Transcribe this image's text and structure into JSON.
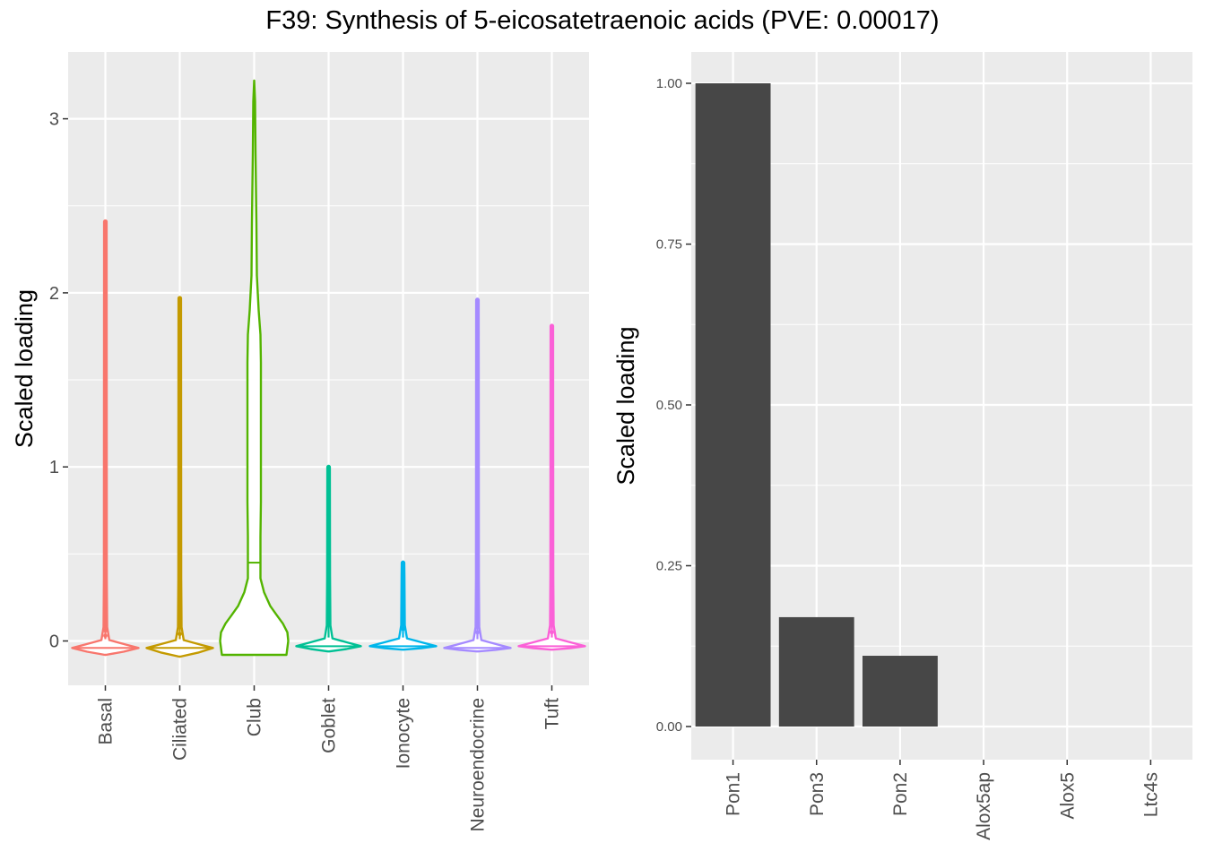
{
  "title": "F39: Synthesis of 5-eicosatetraenoic acids (PVE: 0.00017)",
  "chart_data": [
    {
      "type": "violin",
      "ylabel": "Scaled loading",
      "ylim": [
        -0.25,
        3.3
      ],
      "yticks": [
        0,
        1,
        2,
        3
      ],
      "grid": true,
      "categories": [
        "Basal",
        "Ciliated",
        "Club",
        "Goblet",
        "Ionocyte",
        "Neuroendocrine",
        "Tuft"
      ],
      "series": [
        {
          "category": "Basal",
          "color": "#F8766D",
          "min": -0.08,
          "max": 2.41,
          "median": -0.04,
          "outliers": [
            0.03,
            0.06,
            0.15,
            0.18,
            0.4,
            1.0,
            1.1
          ]
        },
        {
          "category": "Ciliated",
          "color": "#C49A00",
          "min": -0.09,
          "max": 1.97,
          "median": -0.04,
          "outliers": [
            0.04,
            0.08,
            0.22,
            0.26,
            0.8,
            0.88,
            0.92,
            1.36,
            1.58,
            1.7
          ]
        },
        {
          "category": "Club",
          "color": "#53B400",
          "min": -0.08,
          "max": 3.22,
          "median": 0.45
        },
        {
          "category": "Goblet",
          "color": "#00C094",
          "min": -0.06,
          "max": 1.0,
          "median": -0.03,
          "outliers": [
            0.1,
            0.17,
            0.43,
            0.45,
            0.55,
            0.62,
            0.64
          ]
        },
        {
          "category": "Ionocyte",
          "color": "#00B6EB",
          "min": -0.05,
          "max": 0.45,
          "median": -0.03,
          "outliers": [
            0.07
          ]
        },
        {
          "category": "Neuroendocrine",
          "color": "#A58AFF",
          "min": -0.06,
          "max": 1.96,
          "median": -0.04,
          "outliers": [
            0.05,
            0.22,
            0.3,
            0.34,
            0.85,
            1.38,
            1.62,
            1.65,
            1.77,
            1.8
          ]
        },
        {
          "category": "Tuft",
          "color": "#FB61D7",
          "min": -0.05,
          "max": 1.81,
          "median": -0.03,
          "outliers": [
            0.05,
            0.1,
            0.2,
            0.3,
            0.45,
            0.6,
            0.84,
            0.96,
            1.18,
            1.56
          ]
        }
      ]
    },
    {
      "type": "bar",
      "ylabel": "Scaled loading",
      "ylim": [
        -0.05,
        1.05
      ],
      "yticks": [
        "0.00",
        "0.25",
        "0.50",
        "0.75",
        "1.00"
      ],
      "grid": true,
      "categories": [
        "Pon1",
        "Pon3",
        "Pon2",
        "Alox5ap",
        "Alox5",
        "Ltc4s"
      ],
      "values": [
        1.0,
        0.17,
        0.11,
        0.0,
        0.0,
        0.0
      ],
      "bar_color": "#474747"
    }
  ]
}
